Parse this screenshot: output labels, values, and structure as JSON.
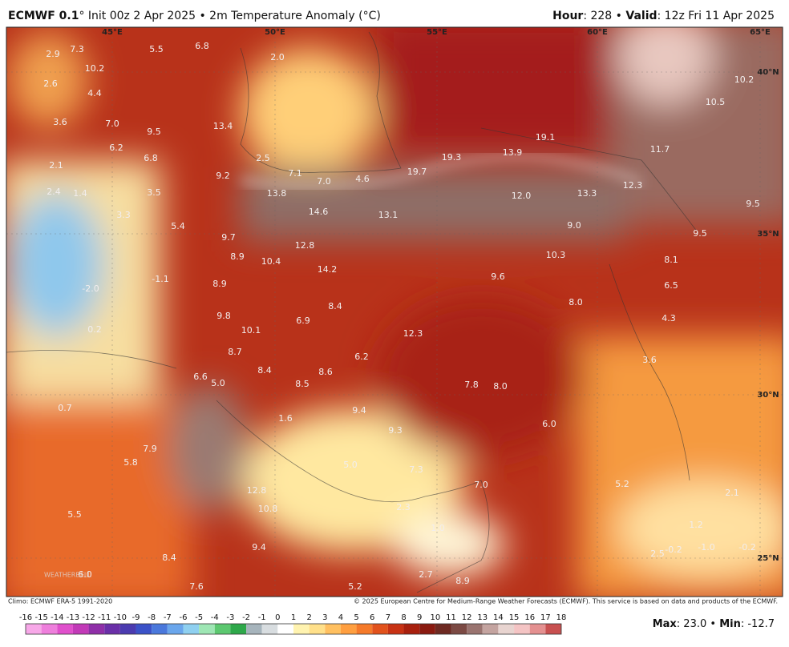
{
  "header": {
    "model": "ECMWF 0.1",
    "init": "° Init 00z 2 Apr 2025 • 2m Temperature Anomaly (°C)",
    "hour_label": "Hour",
    "hour_value": ": 228 • ",
    "valid_label": "Valid",
    "valid_value": ": 12z Fri 11 Apr 2025"
  },
  "map": {
    "lon_labels": [
      "45°E",
      "50°E",
      "55°E",
      "60°E",
      "65°E"
    ],
    "lat_labels": [
      "40°N",
      "35°N",
      "30°N",
      "25°N"
    ],
    "labels": [
      "2.9",
      "7.3",
      "5.5",
      "6.8",
      "2.0",
      "10.2",
      "2.6",
      "4.4",
      "3.6",
      "7.0",
      "9.5",
      "13.4",
      "6.2",
      "6.8",
      "2.1",
      "2.5",
      "9.2",
      "7.1",
      "7.0",
      "4.6",
      "19.7",
      "19.3",
      "13.9",
      "19.1",
      "11.7",
      "12.3",
      "13.3",
      "12.0",
      "2.4",
      "1.4",
      "3.5",
      "13.8",
      "14.6",
      "13.1",
      "9.0",
      "9.5",
      "9.5",
      "3.3",
      "5.4",
      "9.7",
      "12.8",
      "10.3",
      "8.1",
      "8.9",
      "10.4",
      "14.2",
      "9.6",
      "6.5",
      "-2.0",
      "-1.1",
      "8.9",
      "8.4",
      "8.0",
      "4.3",
      "9.8",
      "6.9",
      "0.2",
      "10.1",
      "12.3",
      "8.7",
      "6.2",
      "3.6",
      "6.6",
      "8.4",
      "8.6",
      "5.0",
      "8.5",
      "7.8",
      "8.0",
      "0.7",
      "9.4",
      "1.6",
      "6.0",
      "9.3",
      "7.9",
      "5.8",
      "5.0",
      "7.3",
      "7.0",
      "5.2",
      "2.1",
      "12.8",
      "2.3",
      "10.8",
      "5.5",
      "1.0",
      "1.2",
      "9.4",
      "8.4",
      "-0.2",
      "-1.0",
      "-0.2",
      "6.0",
      "8.9",
      "2.7",
      "7.6",
      "5.2",
      "10.2",
      "10.5",
      "2.5"
    ],
    "watermark": "WEATHERBELL"
  },
  "footer": {
    "climo": "Climo: ECMWF ERA-5 1991-2020",
    "copyright": "© 2025 European Centre for Medium-Range Weather Forecasts (ECMWF). This service is based on data and products of the ECMWF.",
    "max_label": "Max",
    "max_value": ": 23.0 • ",
    "min_label": "Min",
    "min_value": ": -12.7"
  },
  "colorbar": {
    "ticks": [
      -16,
      -15,
      -14,
      -13,
      -12,
      -11,
      -10,
      -9,
      -8,
      -7,
      -6,
      -5,
      -4,
      -3,
      -2,
      -1,
      0,
      1,
      2,
      3,
      4,
      5,
      6,
      7,
      8,
      9,
      10,
      11,
      12,
      13,
      14,
      15,
      16,
      17,
      18
    ],
    "colors": [
      "#f7a8e8",
      "#ee7fdc",
      "#e050cc",
      "#c23ab8",
      "#8f2fa8",
      "#6a2fa8",
      "#4b3bb0",
      "#3b52c8",
      "#4a78dc",
      "#6aa6ec",
      "#8fd0f0",
      "#9ee6b4",
      "#5cc870",
      "#2ea84a",
      "#a6b4bc",
      "#d8dde0",
      "#ffffff",
      "#fff3b0",
      "#ffe08a",
      "#ffc060",
      "#ff9f40",
      "#f57a2a",
      "#e2521c",
      "#c83214",
      "#a8200e",
      "#8a1a10",
      "#6e2a22",
      "#7c4a44",
      "#9a7470",
      "#c4a4a0",
      "#e8d4d0",
      "#f4c4c4",
      "#e49090",
      "#c85050"
    ]
  }
}
